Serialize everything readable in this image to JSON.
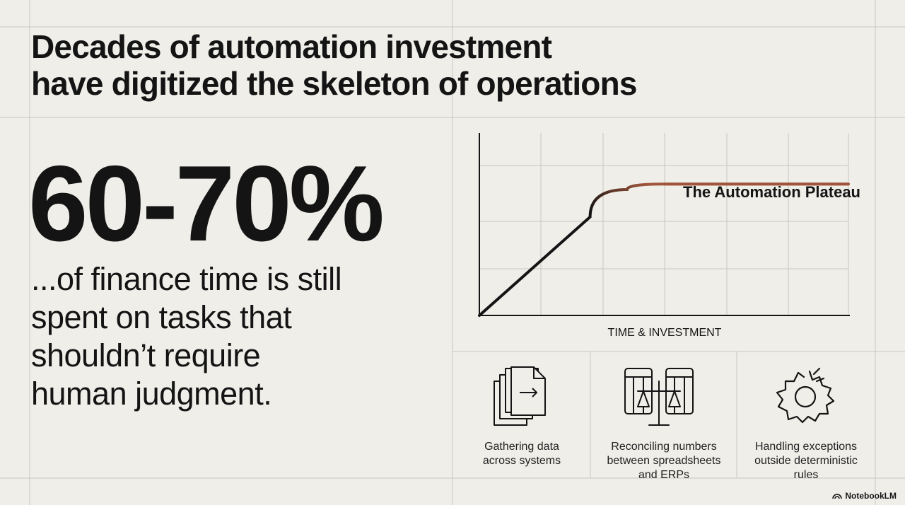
{
  "title": {
    "line1": "Decades of automation investment",
    "line2": "have digitized the skeleton of operations"
  },
  "stat": {
    "value": "60-70%",
    "desc_lines": [
      "...of finance time is still",
      "spent on tasks that",
      "shouldn’t require",
      "human judgment."
    ]
  },
  "chart_data": {
    "type": "line",
    "title": "",
    "xlabel": "TIME & INVESTMENT",
    "ylabel": "",
    "annotation": "The Automation Plateau",
    "grid": true,
    "series": [
      {
        "color": "#a0553a",
        "x": [
          0,
          1,
          2,
          3,
          4,
          5,
          6,
          7,
          8,
          9,
          10
        ],
        "y": [
          0,
          3,
          6,
          9,
          11.5,
          12,
          12,
          12,
          12,
          12,
          12
        ]
      }
    ],
    "ramp_color": "#141414"
  },
  "tasks": [
    {
      "icon": "document-stack-icon",
      "label_lines": [
        "Gathering data",
        "across systems"
      ]
    },
    {
      "icon": "scale-balance-icon",
      "label_lines": [
        "Reconciling numbers",
        "between spreadsheets",
        "and ERPs"
      ]
    },
    {
      "icon": "broken-gear-icon",
      "label_lines": [
        "Handling exceptions",
        "outside deterministic",
        "rules"
      ]
    }
  ],
  "brand": {
    "label": "NotebookLM"
  },
  "colors": {
    "background": "#efeee9",
    "grid": "#c9c7c2",
    "plateau": "#a0553a",
    "text": "#141414"
  }
}
